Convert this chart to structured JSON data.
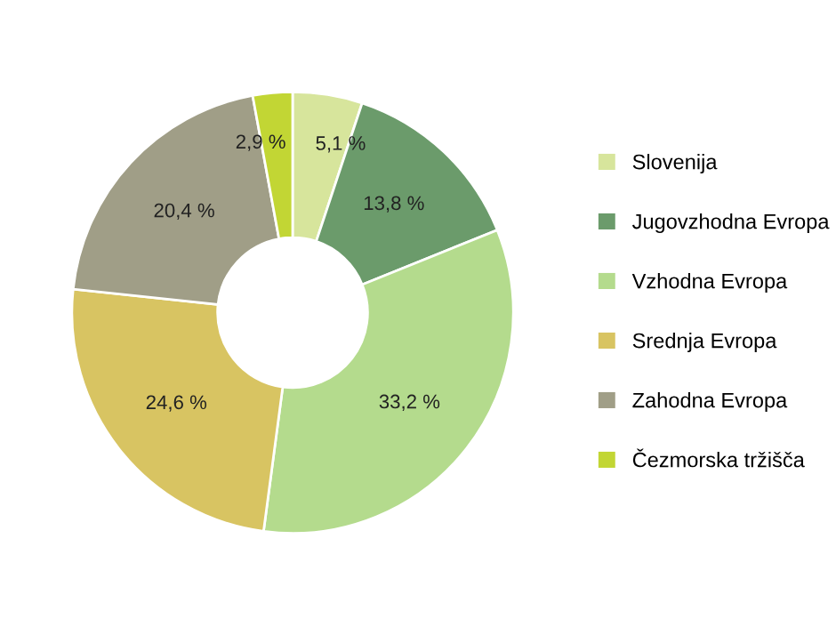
{
  "chart_data": {
    "type": "donut",
    "categories": [
      "Slovenija",
      "Jugovzhodna Evropa",
      "Vzhodna Evropa",
      "Srednja Evropa",
      "Zahodna Evropa",
      "Čezmorska tržišča"
    ],
    "values": [
      5.1,
      13.8,
      33.2,
      24.6,
      20.4,
      2.9
    ],
    "value_labels": [
      "5,1 %",
      "13,8 %",
      "33,2 %",
      "24,6 %",
      "20,4 %",
      "2,9 %"
    ],
    "colors": [
      "#d7e59c",
      "#6b9b6b",
      "#b4db8d",
      "#d8c462",
      "#a09e87",
      "#c2d634"
    ],
    "legend": "right"
  }
}
